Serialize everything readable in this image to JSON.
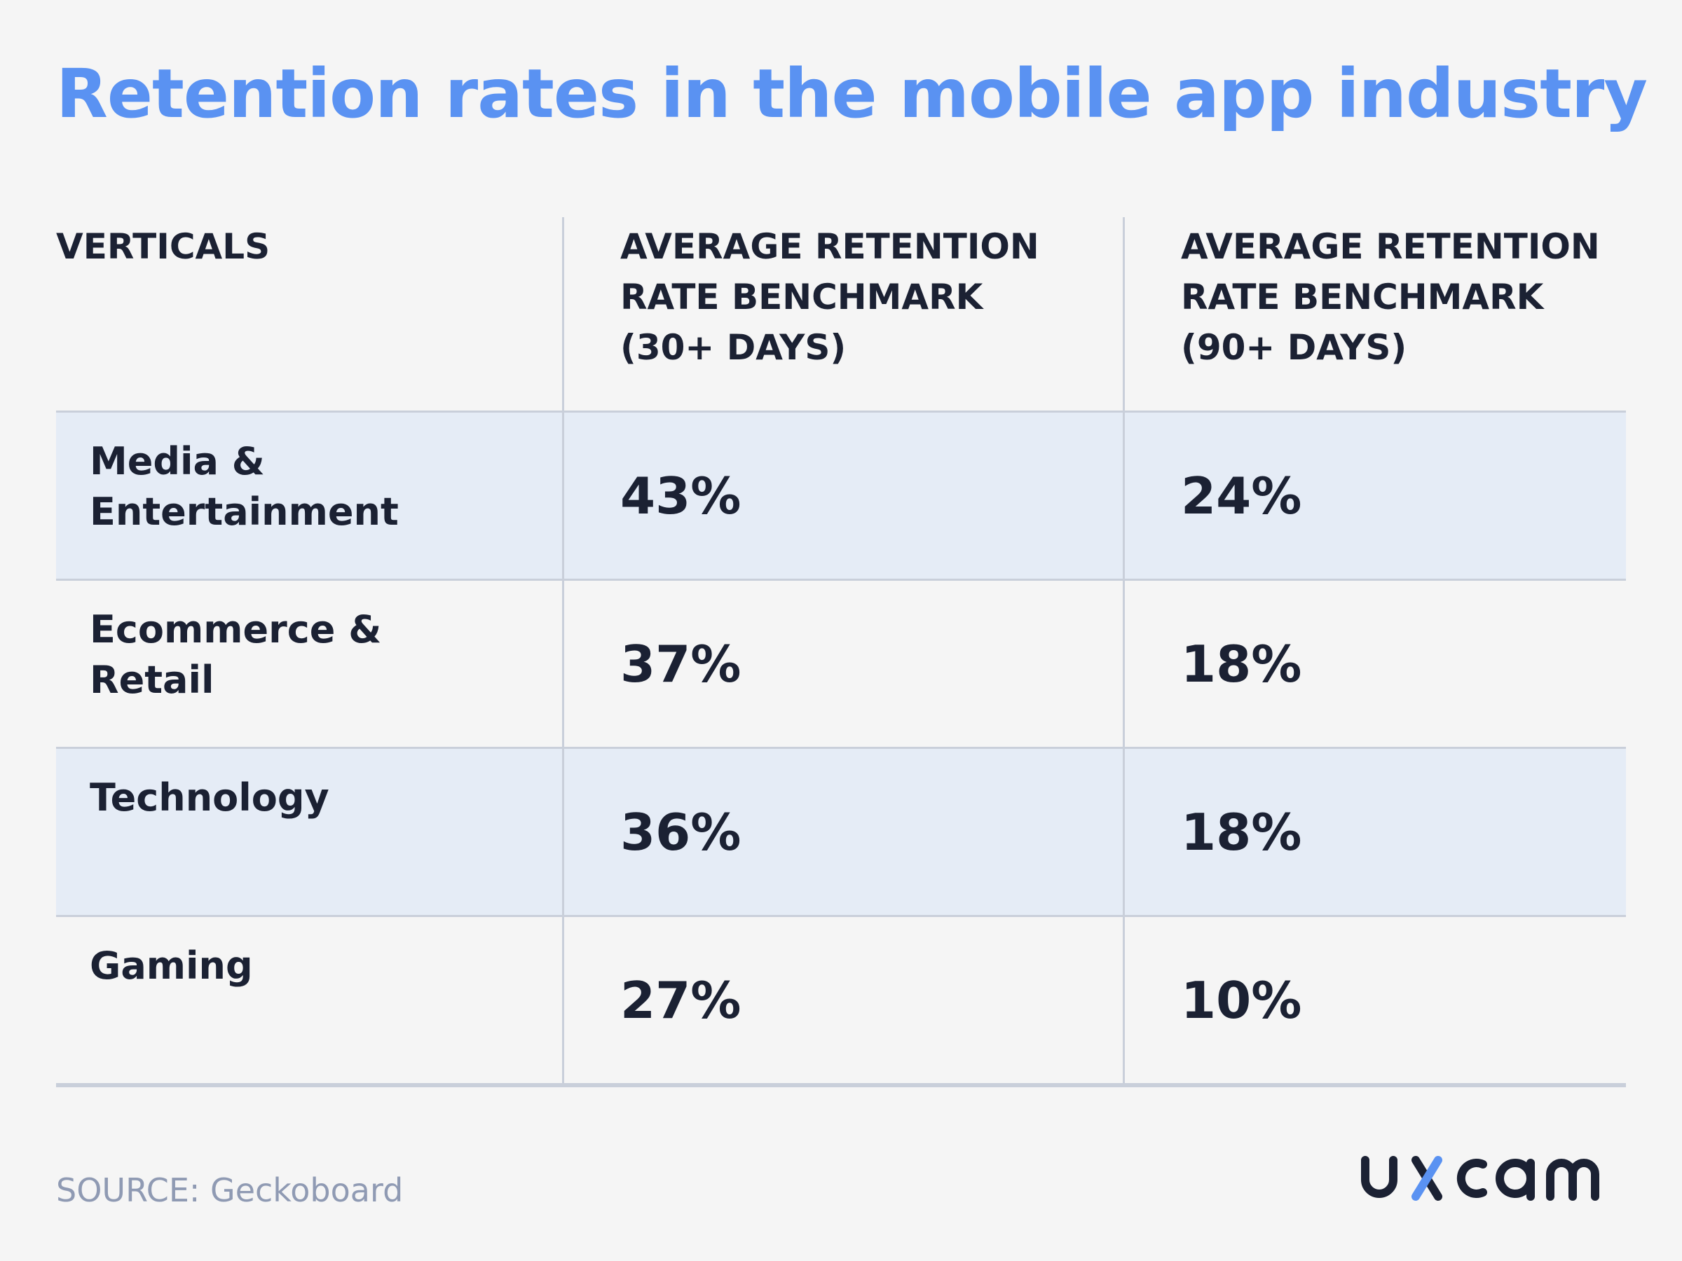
{
  "title": "Retention rates in the mobile app industry",
  "chart_data": {
    "type": "table",
    "title": "Retention rates in the mobile app industry",
    "columns": [
      "VERTICALS",
      "AVERAGE RETENTION RATE BENCHMARK (30+ DAYS)",
      "AVERAGE RETENTION RATE BENCHMARK (90+ DAYS)"
    ],
    "header_lines": [
      [
        "VERTICALS"
      ],
      [
        "AVERAGE RETENTION",
        "RATE BENCHMARK",
        "(30+ DAYS)"
      ],
      [
        "AVERAGE RETENTION",
        "RATE BENCHMARK",
        "(90+ DAYS)"
      ]
    ],
    "rows": [
      {
        "vertical_lines": [
          "Media &",
          "Entertainment"
        ],
        "vertical": "Media & Entertainment",
        "d30": "43%",
        "d90": "24%"
      },
      {
        "vertical_lines": [
          "Ecommerce &",
          "Retail"
        ],
        "vertical": "Ecommerce & Retail",
        "d30": "37%",
        "d90": "18%"
      },
      {
        "vertical_lines": [
          "Technology"
        ],
        "vertical": "Technology",
        "d30": "36%",
        "d90": "18%"
      },
      {
        "vertical_lines": [
          "Gaming"
        ],
        "vertical": "Gaming",
        "d30": "27%",
        "d90": "10%"
      }
    ]
  },
  "source": "SOURCE: Geckoboard",
  "logo": {
    "text": "uxcam",
    "accent_color": "#5a92f2",
    "color": "#1b2133"
  },
  "colors": {
    "title": "#5a92f2",
    "row_shade": "#e5ecf6",
    "divider": "#c9cfda",
    "source": "#8f9ab3"
  }
}
